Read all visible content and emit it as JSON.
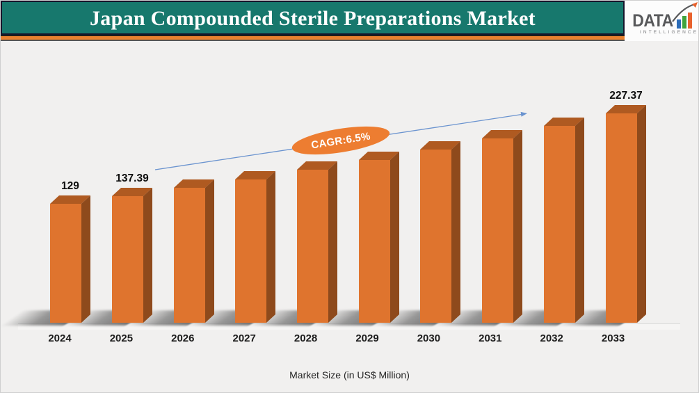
{
  "header": {
    "title": "Japan Compounded Sterile Preparations Market",
    "colors": {
      "banner_bg": "#17786D",
      "accent_strip": "#E8812F",
      "title_color": "#FFFFFF"
    },
    "logo": {
      "brand": "DATA",
      "subbrand": "INTELLIGENCE",
      "bar_colors": [
        "#2B6CB8",
        "#3FA33C",
        "#E8622D"
      ],
      "text_color": "#58595B"
    }
  },
  "chart_data": {
    "type": "bar",
    "title": "Japan Compounded Sterile Preparations Market",
    "categories": [
      "2024",
      "2025",
      "2026",
      "2027",
      "2028",
      "2029",
      "2030",
      "2031",
      "2032",
      "2033"
    ],
    "values": [
      129,
      137.39,
      146.32,
      155.83,
      165.96,
      176.75,
      188.24,
      200.47,
      213.5,
      227.37
    ],
    "shown_value_labels": {
      "2024": "129",
      "2025": "137.39",
      "2033": "227.37"
    },
    "annotation": {
      "cagr_label": "CAGR:6.5%",
      "badge_color": "#ED7D31",
      "arrow_color": "#6A93CF"
    },
    "xlabel": "Market Size (in US$ Million)",
    "ylabel": "",
    "ylim": [
      0,
      240
    ],
    "grid": false,
    "legend": false,
    "colors": {
      "front": "#DF742E",
      "top": "#AF5A21",
      "side": "#8E4A1C"
    }
  },
  "footer": {
    "caption": "Market Size (in US$ Million)"
  }
}
